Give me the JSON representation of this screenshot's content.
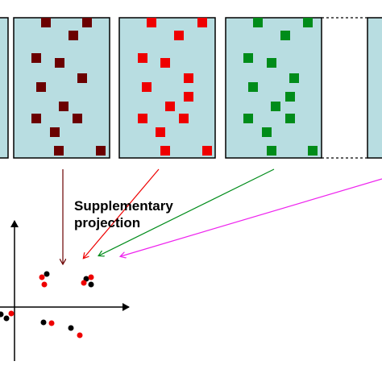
{
  "annotation": {
    "line1": "Supplementary",
    "line2": "projection"
  },
  "colors": {
    "panel_fill": "#b8dde1",
    "panel_border": "#000000",
    "dark_red": "#6b0000",
    "red": "#ee0000",
    "green": "#008c1a",
    "magenta": "#ee22ee",
    "black": "#000000"
  },
  "panels": [
    {
      "name": "panel-dark-red",
      "color": "dark_red"
    },
    {
      "name": "panel-red",
      "color": "red"
    },
    {
      "name": "panel-green",
      "color": "green"
    }
  ]
}
